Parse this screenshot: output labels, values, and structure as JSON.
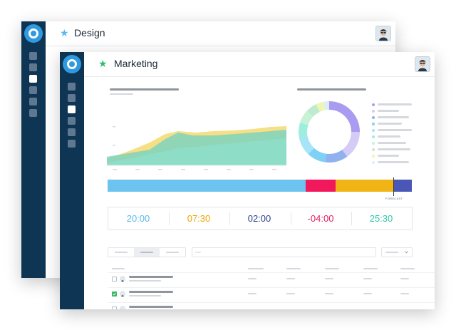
{
  "windows": {
    "back": {
      "title": "Design",
      "star_color": "#5ab9ea"
    },
    "front": {
      "title": "Marketing",
      "star_color": "#2dbf65"
    }
  },
  "icons": {
    "logo": "ring-logo-icon",
    "star": "star-icon",
    "avatar": "user-avatar-icon",
    "dropdown": "chevron-down-icon"
  },
  "colors": {
    "sidebar": "#0f3555",
    "accent": "#2f9ae0",
    "bar_blue": "#6cc3f0",
    "bar_pink": "#f2185c",
    "bar_yellow": "#f0b414",
    "bar_navy": "#4a57b5"
  },
  "progress": {
    "segments": [
      {
        "name": "blue",
        "fraction": 0.65
      },
      {
        "name": "pink",
        "fraction": 0.1
      },
      {
        "name": "yellow",
        "fraction": 0.19
      },
      {
        "name": "navy",
        "fraction": 0.06
      }
    ],
    "forecast_label": "FORECAST"
  },
  "timezones": [
    {
      "time": "20:00",
      "color": "#5ab9ea"
    },
    {
      "time": "07:30",
      "color": "#e8a500"
    },
    {
      "time": "02:00",
      "color": "#2a3f8f"
    },
    {
      "time": "-04:00",
      "color": "#e61c5b"
    },
    {
      "time": "25:30",
      "color": "#32c4a7"
    }
  ],
  "donut": {
    "slice_fractions": [
      0.25,
      0.15,
      0.12,
      0.1,
      0.1,
      0.08,
      0.07,
      0.06,
      0.04,
      0.03
    ],
    "slice_colors": [
      "#a99bef",
      "#d4cbf6",
      "#8fb2ee",
      "#7fd0f5",
      "#a6e4f7",
      "#9deedd",
      "#c7f2d6",
      "#bfeacd",
      "#eef6b4",
      "#dcedf6"
    ]
  },
  "table": {
    "rows": [
      {
        "checked": false
      },
      {
        "checked": true
      },
      {
        "checked": false
      }
    ]
  }
}
